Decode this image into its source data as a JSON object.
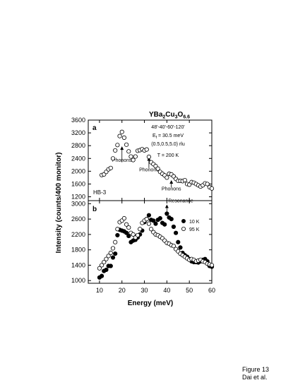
{
  "figure": {
    "caption_line1": "Figure 13",
    "caption_line2": "Dai et al."
  },
  "chart_data": {
    "type": "scatter",
    "title": {
      "formula_main": "YBa",
      "sub1": "2",
      "mid": "Cu",
      "sub2": "3",
      "end": "O",
      "sub3": "6.6"
    },
    "ylabel": "Intensity (counts/400 monitor)",
    "xlabel": "Energy (meV)",
    "xlim": [
      5,
      60
    ],
    "xticks": [
      "10",
      "20",
      "30",
      "40",
      "50",
      "60"
    ],
    "grid": false,
    "panels": [
      {
        "label": "a",
        "instrument": "HB-3",
        "ylim": [
          1080,
          3600
        ],
        "yticks": [
          "1200",
          "1600",
          "2000",
          "2400",
          "2800",
          "3200",
          "3600"
        ],
        "info": [
          "48'-40'-60'-120'",
          "E",
          "f",
          " = 30.5 meV",
          "(0.5,0.5,5.0) rlu",
          "T = 200 K"
        ],
        "annotations": [
          {
            "text": "Phonons",
            "x": 20,
            "y_from": 2780,
            "y_to": 2280,
            "label_y": 2300
          },
          {
            "text": "Phonons",
            "x": 32,
            "y_from": 2440,
            "y_to": 2100,
            "label_y": 2000
          },
          {
            "text": "Phonons",
            "x": 42,
            "y_from": 1720,
            "y_to": 1500,
            "label_y": 1400
          }
        ],
        "series": [
          {
            "marker": "open",
            "x": [
              11,
              12,
              13,
              14,
              15,
              16,
              17,
              18,
              19,
              20,
              21,
              22,
              23,
              24,
              25,
              26,
              27,
              28,
              29,
              30,
              31,
              32,
              33,
              34,
              35,
              36,
              37,
              38,
              39,
              40,
              41,
              42,
              43,
              44,
              45,
              46,
              47,
              48,
              49,
              50,
              51,
              52,
              53,
              54,
              55,
              56,
              57,
              58,
              59,
              60
            ],
            "y": [
              1880,
              1900,
              1980,
              2060,
              2100,
              2400,
              2650,
              2820,
              3100,
              3230,
              3050,
              2830,
              2620,
              2460,
              2350,
              2460,
              2640,
              2660,
              2690,
              2650,
              2680,
              2450,
              2280,
              2220,
              2160,
              2080,
              1980,
              1920,
              1870,
              1800,
              1920,
              1900,
              1840,
              1760,
              1700,
              1700,
              1690,
              1720,
              1600,
              1580,
              1660,
              1640,
              1600,
              1560,
              1520,
              1560,
              1620,
              1600,
              1500,
              1460
            ]
          }
        ]
      },
      {
        "label": "b",
        "ylim": [
          930,
          3080
        ],
        "yticks": [
          "1000",
          "1400",
          "1800",
          "2200",
          "2600",
          "3000"
        ],
        "legend": [
          {
            "marker": "filled",
            "label": "10 K"
          },
          {
            "marker": "open",
            "label": "95 K"
          }
        ],
        "annotations": [
          {
            "text": "Resonance",
            "x": 40,
            "y_from": 2980,
            "y_to": 2700
          }
        ],
        "series": [
          {
            "name": "10 K",
            "marker": "filled",
            "x": [
              10,
              11,
              12,
              13,
              14,
              15,
              16,
              17,
              18,
              19,
              20,
              21,
              22,
              23,
              24,
              25,
              26,
              27,
              28,
              29,
              30,
              31,
              32,
              33,
              34,
              35,
              36,
              37,
              38,
              39,
              40,
              41,
              42,
              43,
              44,
              45,
              46,
              47,
              48,
              49,
              50,
              51,
              52,
              53,
              54,
              55,
              56,
              57,
              58,
              59,
              60
            ],
            "y": [
              1080,
              1120,
              1250,
              1280,
              1380,
              1380,
              1600,
              1700,
              2180,
              2320,
              2300,
              2280,
              2240,
              2160,
              2000,
              2040,
              2060,
              2120,
              2200,
              2300,
              2520,
              2600,
              2700,
              2580,
              2560,
              2480,
              2580,
              2620,
              2500,
              2460,
              2740,
              2640,
              2600,
              2400,
              2240,
              2000,
              1860,
              1720,
              1660,
              1620,
              1560,
              1500,
              1480,
              1480,
              1470,
              1500,
              1540,
              1560,
              1500,
              1380,
              1360
            ]
          },
          {
            "name": "95 K",
            "marker": "open",
            "x": [
              10,
              11,
              12,
              13,
              14,
              15,
              16,
              17,
              18,
              19,
              20,
              21,
              22,
              23,
              24,
              25,
              26,
              27,
              28,
              29,
              30,
              31,
              32,
              33,
              34,
              35,
              36,
              37,
              38,
              39,
              40,
              41,
              42,
              43,
              44,
              45,
              46,
              47,
              48,
              49,
              50,
              51,
              52,
              53,
              54,
              55,
              56,
              57,
              58,
              59,
              60
            ],
            "y": [
              1320,
              1400,
              1480,
              1560,
              1640,
              1720,
              1840,
              2000,
              2340,
              2520,
              2560,
              2620,
              2460,
              2380,
              2240,
              2200,
              2120,
              2180,
              2340,
              2500,
              2560,
              2600,
              2480,
              2340,
              2260,
              2200,
              2180,
              2140,
              2100,
              2040,
              1980,
              1960,
              1920,
              1900,
              1820,
              1760,
              1700,
              1660,
              1620,
              1580,
              1540,
              1560,
              1540,
              1500,
              1520,
              1540,
              1500,
              1480,
              1440,
              1420,
              1400
            ]
          }
        ]
      }
    ]
  }
}
